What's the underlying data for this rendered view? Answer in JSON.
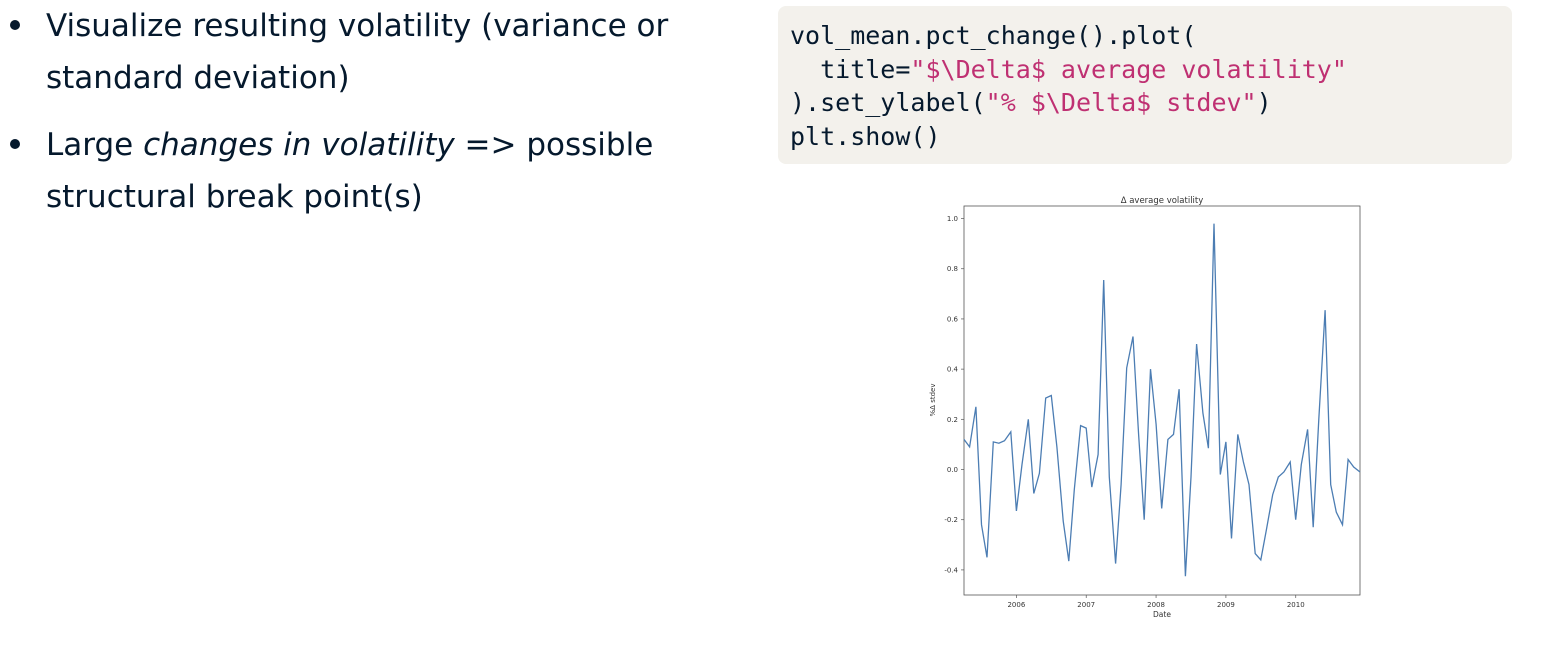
{
  "bullets": [
    {
      "text_parts": [
        "Visualize resulting volatility (variance or standard deviation)"
      ]
    },
    {
      "text_parts": [
        "Large ",
        "changes in volatility",
        " => possible structural break point(s)"
      ]
    }
  ],
  "code": {
    "lines": [
      [
        {
          "t": "vol_mean.pct_change().plot(",
          "s": ""
        }
      ],
      [
        {
          "t": "  title=",
          "s": ""
        },
        {
          "t": "\"$\\Delta$ average volatility\"",
          "s": "str"
        }
      ],
      [
        {
          "t": ").set_ylabel(",
          "s": ""
        },
        {
          "t": "\"% $\\Delta$ stdev\"",
          "s": "str"
        },
        {
          "t": ")",
          "s": ""
        }
      ],
      [
        {
          "t": "plt.show()",
          "s": ""
        }
      ]
    ]
  },
  "chart_data": {
    "type": "line",
    "title": "Δ average volatility",
    "xlabel": "Date",
    "ylabel": "%Δ stdev",
    "xlim": [
      2005.25,
      2010.92
    ],
    "ylim": [
      -0.5,
      1.05
    ],
    "yticks": [
      -0.4,
      -0.2,
      0.0,
      0.2,
      0.4,
      0.6,
      0.8,
      1.0
    ],
    "ytick_labels": [
      "-0.4",
      "-0.2",
      "0.0",
      "0.2",
      "0.4",
      "0.6",
      "0.8",
      "1.0"
    ],
    "xticks": [
      2006,
      2007,
      2008,
      2009,
      2010
    ],
    "xtick_labels": [
      "2006",
      "2007",
      "2008",
      "2009",
      "2010"
    ],
    "grid": false,
    "line_color": "#4c7db3",
    "x": [
      2005.25,
      2005.33,
      2005.42,
      2005.5,
      2005.58,
      2005.67,
      2005.75,
      2005.83,
      2005.92,
      2006.0,
      2006.08,
      2006.17,
      2006.25,
      2006.33,
      2006.42,
      2006.5,
      2006.58,
      2006.67,
      2006.75,
      2006.83,
      2006.92,
      2007.0,
      2007.08,
      2007.17,
      2007.25,
      2007.33,
      2007.42,
      2007.5,
      2007.58,
      2007.67,
      2007.75,
      2007.83,
      2007.92,
      2008.0,
      2008.08,
      2008.17,
      2008.25,
      2008.33,
      2008.42,
      2008.5,
      2008.58,
      2008.67,
      2008.75,
      2008.83,
      2008.92,
      2009.0,
      2009.08,
      2009.17,
      2009.25,
      2009.33,
      2009.42,
      2009.5,
      2009.58,
      2009.67,
      2009.75,
      2009.83,
      2009.92,
      2010.0,
      2010.08,
      2010.17,
      2010.25,
      2010.33,
      2010.42,
      2010.5,
      2010.58,
      2010.67,
      2010.75,
      2010.83,
      2010.92
    ],
    "y": [
      0.12,
      0.09,
      0.25,
      -0.22,
      -0.35,
      0.11,
      0.105,
      0.115,
      0.15,
      -0.165,
      0.02,
      0.2,
      -0.095,
      -0.015,
      0.285,
      0.295,
      0.09,
      -0.205,
      -0.365,
      -0.08,
      0.175,
      0.165,
      -0.07,
      0.06,
      0.755,
      -0.03,
      -0.375,
      -0.06,
      0.405,
      0.53,
      0.14,
      -0.2,
      0.4,
      0.18,
      -0.155,
      0.12,
      0.14,
      0.32,
      -0.425,
      -0.03,
      0.5,
      0.225,
      0.085,
      0.98,
      -0.02,
      0.11,
      -0.275,
      0.14,
      0.03,
      -0.06,
      -0.335,
      -0.36,
      -0.24,
      -0.1,
      -0.03,
      -0.01,
      0.03,
      -0.2,
      0.02,
      0.16,
      -0.23,
      0.2,
      0.635,
      -0.06,
      -0.17,
      -0.22,
      0.04,
      0.01,
      -0.01
    ]
  }
}
